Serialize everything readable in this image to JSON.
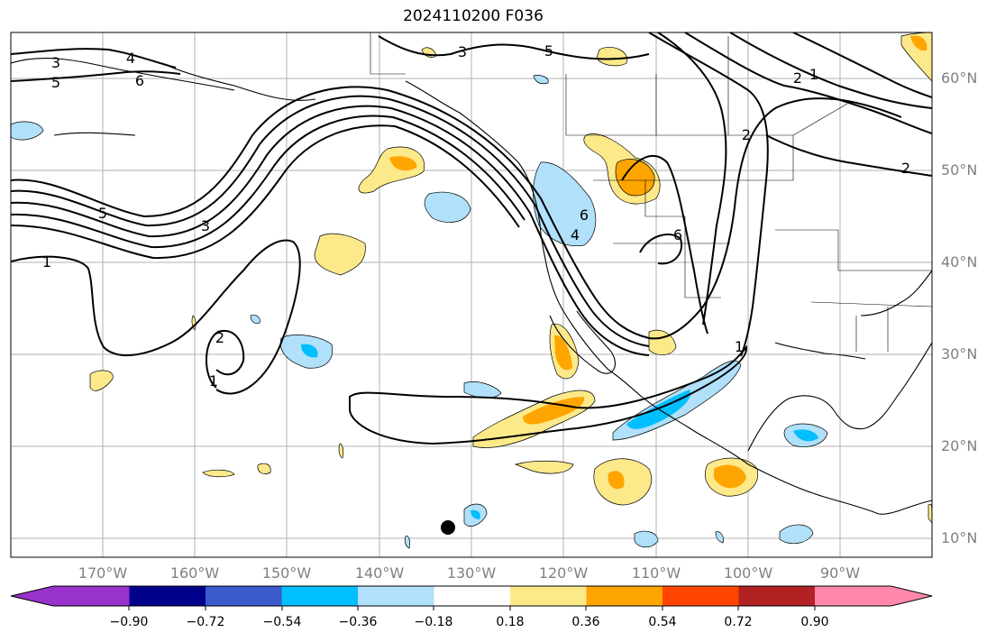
{
  "title": "2024110200 F036",
  "map": {
    "latitude_labels": [
      "60°N",
      "50°N",
      "40°N",
      "30°N",
      "20°N",
      "10°N"
    ],
    "longitude_labels": [
      "170°W",
      "160°W",
      "150°W",
      "140°W",
      "130°W",
      "120°W",
      "110°W",
      "100°W",
      "90°W"
    ],
    "contour_labels": [
      "3",
      "4",
      "5",
      "6",
      "3",
      "5",
      "1",
      "2",
      "5",
      "3",
      "1",
      "2",
      "1",
      "6",
      "4",
      "6",
      "2",
      "2",
      "1"
    ],
    "marker": "circle-marker"
  },
  "colorbar": {
    "colors": [
      "#9932cc",
      "#00008b",
      "#3a5bcc",
      "#00bfff",
      "#b0e0fa",
      "#ffffff",
      "#fce98a",
      "#ffa500",
      "#ff4500",
      "#b22222",
      "#ff88aa"
    ],
    "tick_labels": [
      "−0.90",
      "−0.72",
      "−0.54",
      "−0.36",
      "−0.18",
      "0.18",
      "0.36",
      "0.54",
      "0.72",
      "0.90"
    ]
  },
  "chart_data": {
    "type": "heatmap",
    "title": "2024110200 F036",
    "lon_range": [
      -180,
      -80
    ],
    "lat_range": [
      8,
      65
    ],
    "color_scale": [
      -0.9,
      -0.72,
      -0.54,
      -0.36,
      -0.18,
      0.18,
      0.36,
      0.54,
      0.72,
      0.9
    ],
    "contour_levels": [
      1,
      2,
      3,
      4,
      5,
      6
    ]
  }
}
